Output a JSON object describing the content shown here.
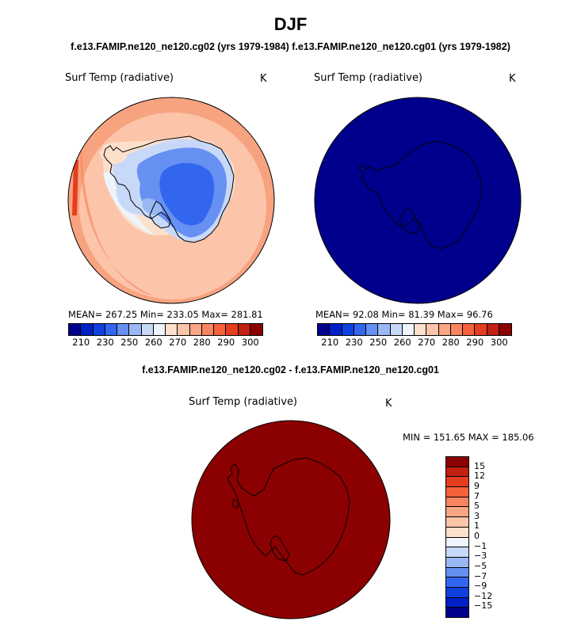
{
  "title": "DJF",
  "case_titles": "f.e13.FAMIP.ne120_ne120.cg02 (yrs 1979-1984) f.e13.FAMIP.ne120_ne120.cg01 (yrs 1979-1982)",
  "panels": [
    {
      "variable": "Surf Temp (radiative)",
      "units": "K",
      "stats_text": "MEAN= 267.25   Min= 233.05   Max= 281.81",
      "fill": "temperature-field"
    },
    {
      "variable": "Surf Temp (radiative)",
      "units": "K",
      "stats_text": "MEAN=  92.08   Min=  81.39   Max=  96.76",
      "fill": "#00008c"
    }
  ],
  "legend_abs": {
    "colors": [
      "#00008c",
      "#0020c8",
      "#1040e0",
      "#3366ee",
      "#6690f2",
      "#99b8f5",
      "#c8d8f8",
      "#eef4fb",
      "#fde0cc",
      "#fcc4a8",
      "#fba584",
      "#f98560",
      "#f5623c",
      "#e53e1e",
      "#c22010",
      "#8b0000"
    ],
    "ticks": [
      "210",
      "230",
      "250",
      "260",
      "270",
      "280",
      "290",
      "300"
    ]
  },
  "diff": {
    "title": "f.e13.FAMIP.ne120_ne120.cg02 - f.e13.FAMIP.ne120_ne120.cg01",
    "variable": "Surf Temp (radiative)",
    "units": "K",
    "minmax_text": "MIN = 151.65 MAX = 185.06",
    "fill": "#8b0000",
    "legend_colors": [
      "#8b0000",
      "#c22010",
      "#e53e1e",
      "#f5623c",
      "#f98560",
      "#fba584",
      "#fcc4a8",
      "#fde0cc",
      "#eef4fb",
      "#c8d8f8",
      "#99b8f5",
      "#6690f2",
      "#3366ee",
      "#1040e0",
      "#0020c8",
      "#00008c"
    ],
    "legend_ticks": [
      "15",
      "12",
      "9",
      "7",
      "5",
      "3",
      "1",
      "0",
      "−1",
      "−3",
      "−5",
      "−7",
      "−9",
      "−12",
      "−15"
    ]
  }
}
